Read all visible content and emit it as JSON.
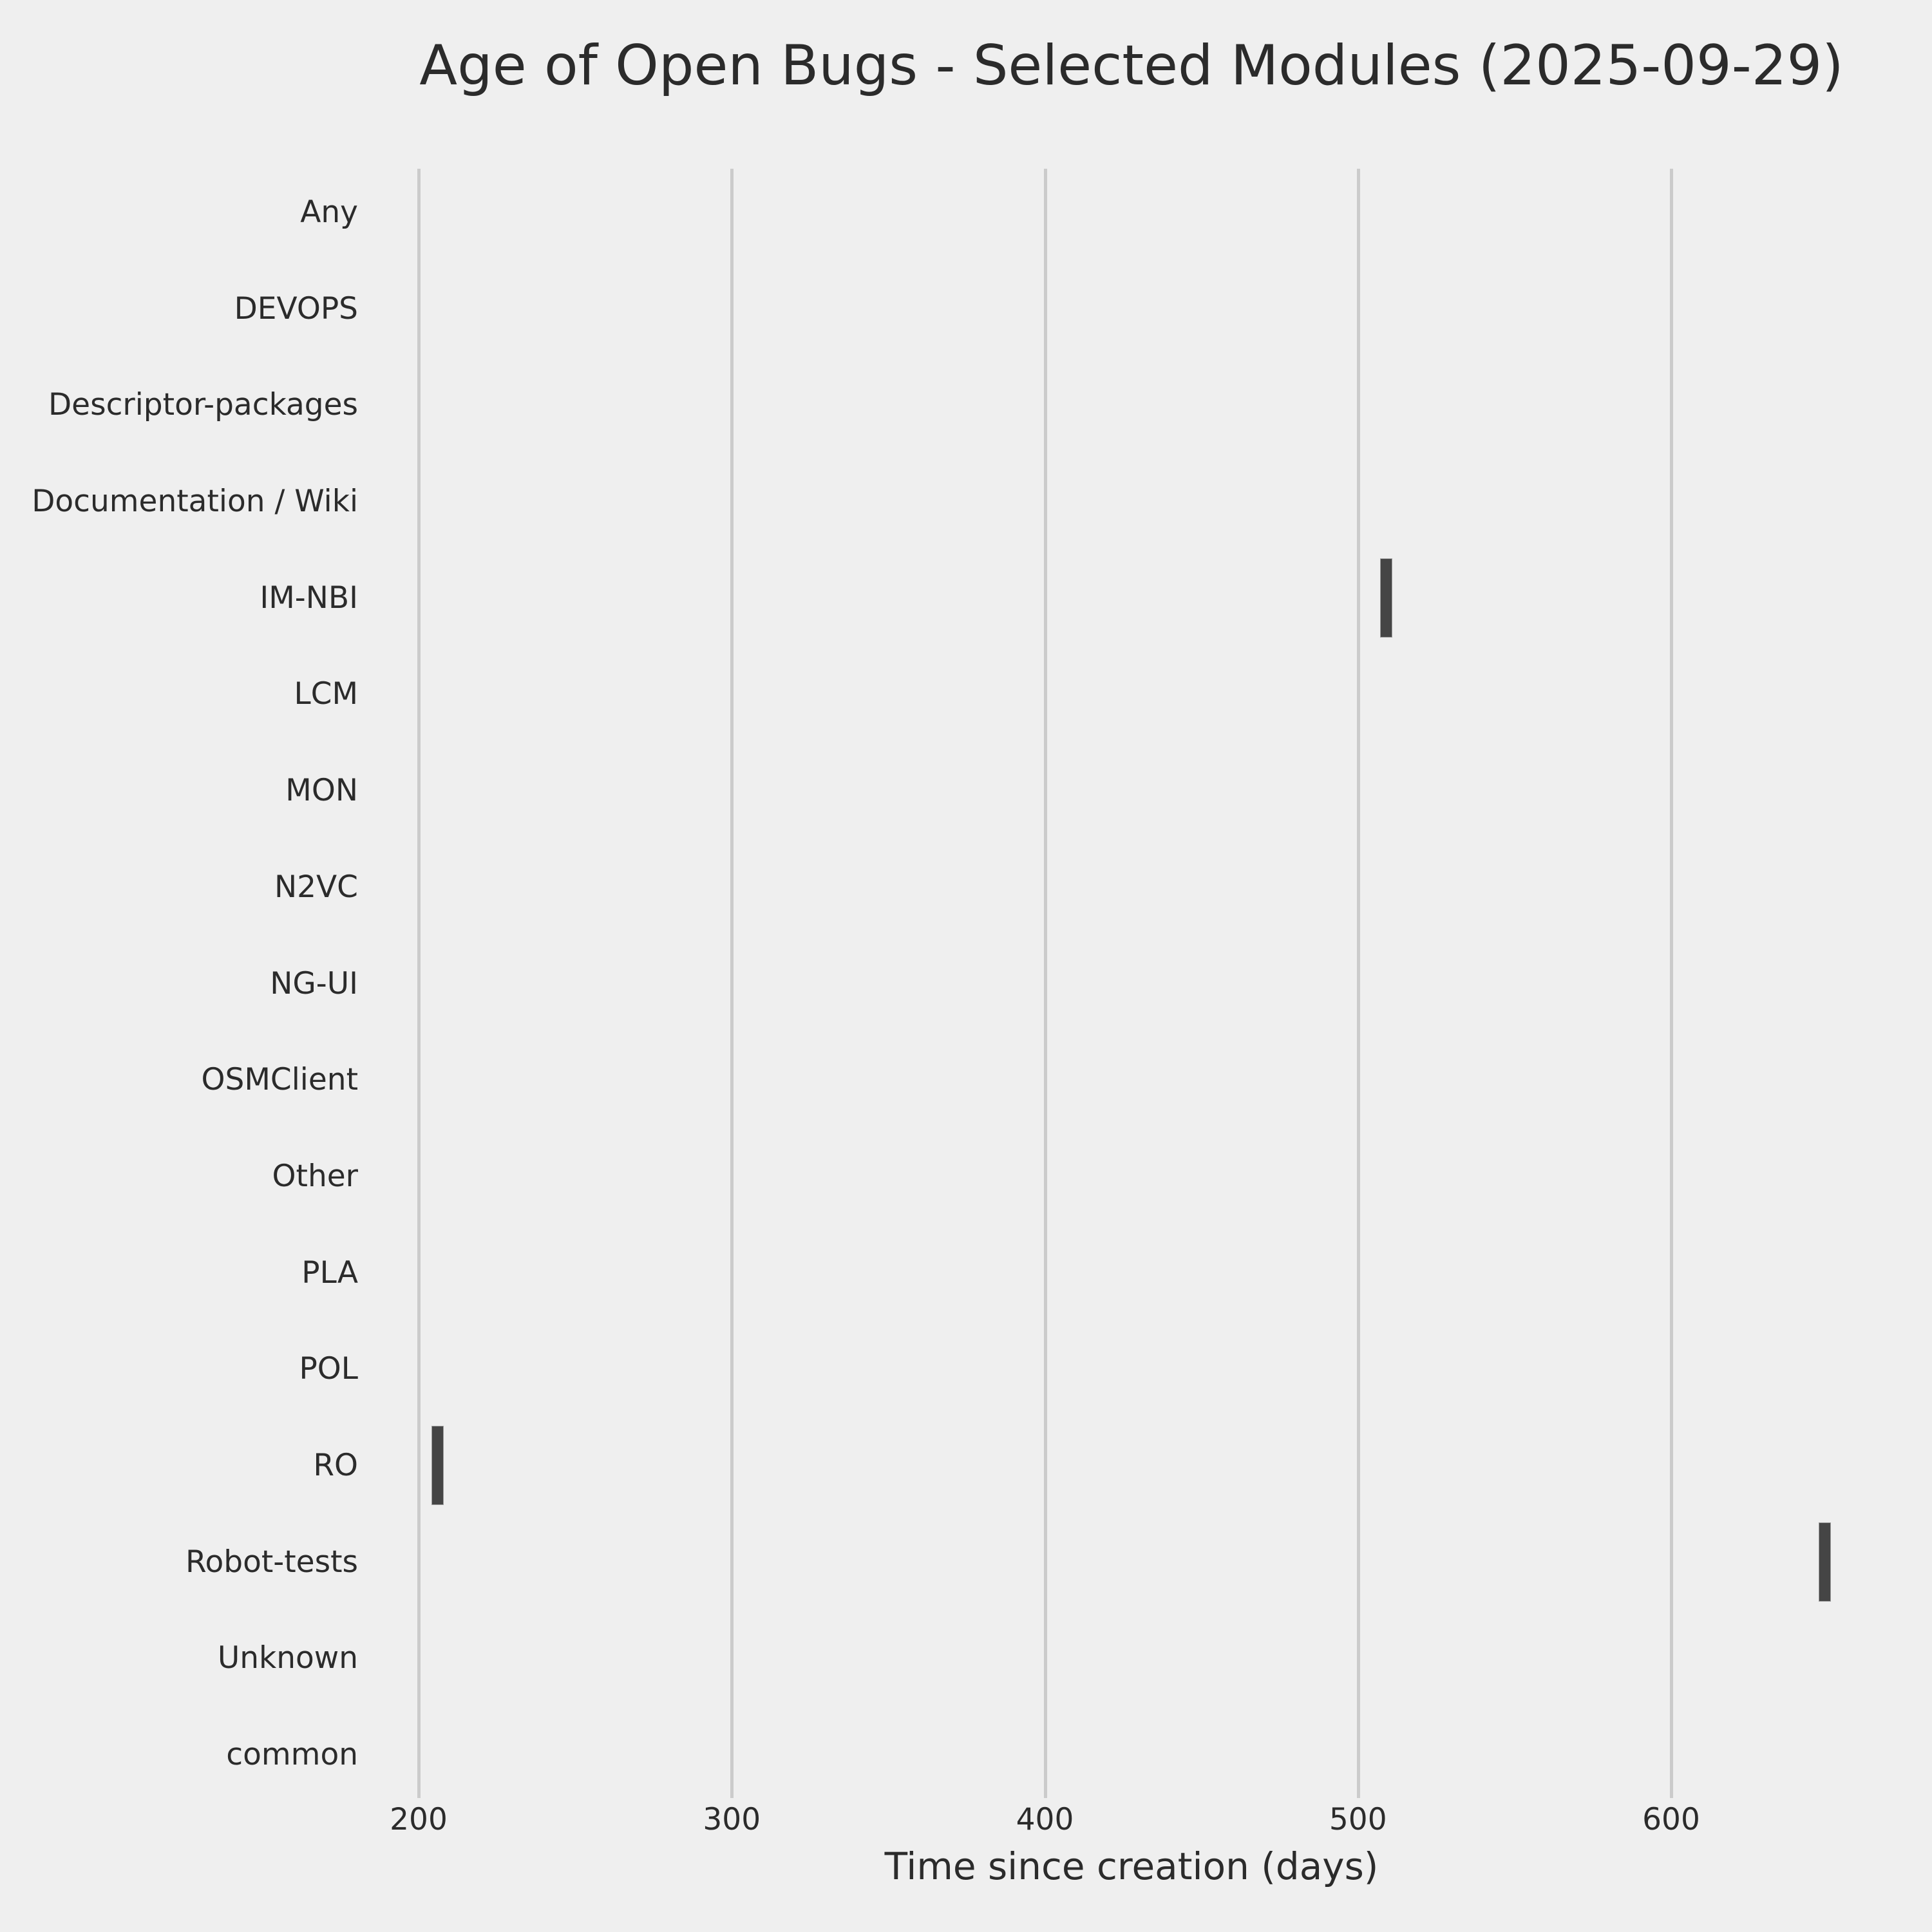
{
  "chart_data": {
    "type": "scatter",
    "marker": "tick",
    "title": "Age of Open Bugs - Selected Modules (2025-09-29)",
    "xlabel": "Time since creation (days)",
    "ylabel": "",
    "categories": [
      "Any",
      "DEVOPS",
      "Descriptor-packages",
      "Documentation / Wiki",
      "IM-NBI",
      "LCM",
      "MON",
      "N2VC",
      "NG-UI",
      "OSMClient",
      "Other",
      "PLA",
      "POL",
      "RO",
      "Robot-tests",
      "Unknown",
      "common"
    ],
    "points": [
      {
        "category": "IM-NBI",
        "days": 509
      },
      {
        "category": "RO",
        "days": 206
      },
      {
        "category": "Robot-tests",
        "days": 649
      }
    ],
    "x_ticks": [
      200,
      300,
      400,
      500,
      600
    ],
    "xlim": [
      184,
      672
    ],
    "grid": true,
    "legend": false,
    "colors": {
      "background": "#efefef",
      "gridline": "#cbcbcb",
      "marker": "#454545",
      "text": "#2b2b2b"
    }
  }
}
